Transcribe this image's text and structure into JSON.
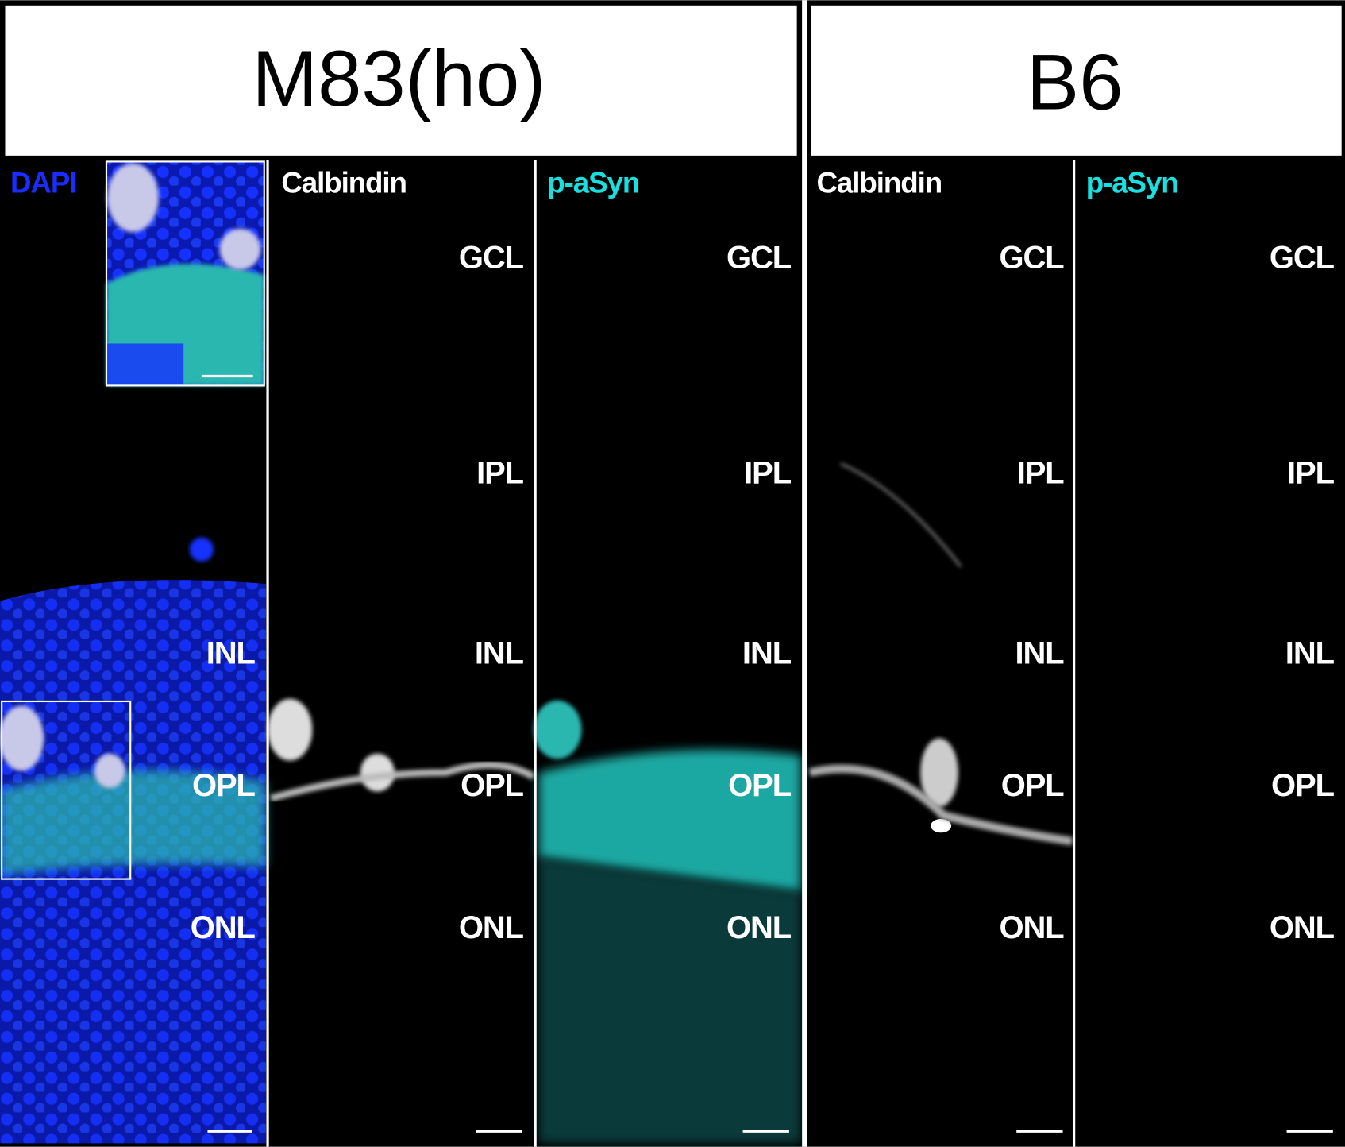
{
  "groups": [
    {
      "title": "M83(ho)",
      "panels": [
        {
          "label": "DAPI",
          "layers": [
            "INL",
            "OPL",
            "ONL"
          ]
        },
        {
          "label": "Calbindin",
          "layers": [
            "GCL",
            "IPL",
            "INL",
            "OPL",
            "ONL"
          ]
        },
        {
          "label": "p-aSyn",
          "layers": [
            "GCL",
            "IPL",
            "INL",
            "OPL",
            "ONL"
          ]
        }
      ]
    },
    {
      "title": "B6",
      "panels": [
        {
          "label": "Calbindin",
          "layers": [
            "GCL",
            "IPL",
            "INL",
            "OPL",
            "ONL"
          ]
        },
        {
          "label": "p-aSyn",
          "layers": [
            "GCL",
            "IPL",
            "INL",
            "OPL",
            "ONL"
          ]
        }
      ]
    }
  ]
}
